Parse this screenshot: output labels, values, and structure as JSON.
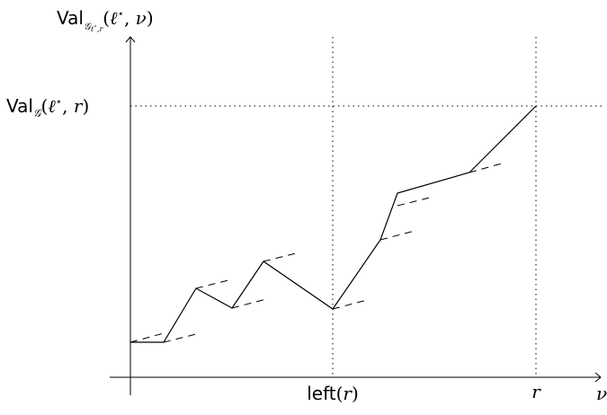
{
  "labels": {
    "y_axis": {
      "val": "Val",
      "sub_g": "𝒢",
      "sub_l": "ℓ",
      "sub_star": "⋆",
      "sub_r": ",r",
      "open": "(",
      "l": "ℓ",
      "star": "⋆",
      "comma": ", ",
      "nu": "ν",
      "close": ")"
    },
    "value_marker": {
      "val": "Val",
      "sub_g": "𝒢",
      "open": "(",
      "l": "ℓ",
      "star": "⋆",
      "comma": ", ",
      "r": "r",
      "close": ")"
    },
    "left_marker": {
      "text": "left",
      "open": "(",
      "r": "r",
      "close": ")"
    },
    "r_marker": "r",
    "x_axis": "ν"
  }
}
